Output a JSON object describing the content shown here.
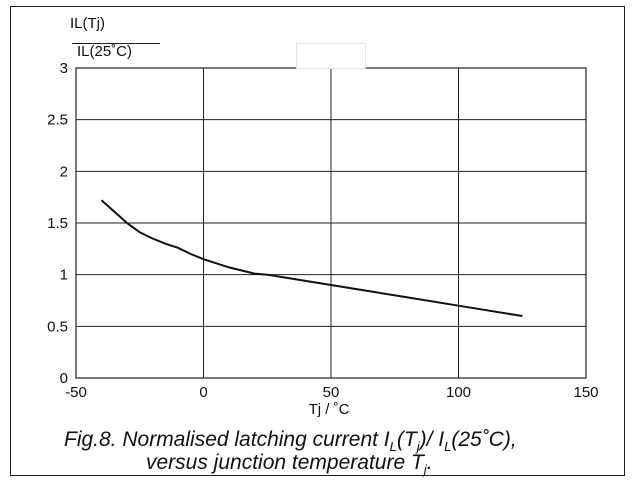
{
  "chart_data": {
    "type": "line",
    "ylabel_numerator": "IL(Tj)",
    "ylabel_denominator": "IL(25˚C)",
    "xlabel": "Tj / ˚C",
    "xlim": [
      -50,
      150
    ],
    "ylim": [
      0,
      3
    ],
    "x_ticks": [
      "-50",
      "0",
      "50",
      "100",
      "150"
    ],
    "y_ticks": [
      "0",
      "0.5",
      "1",
      "1.5",
      "2",
      "2.5",
      "3"
    ],
    "grid": true,
    "series": [
      {
        "x": [
          -40,
          -35,
          -30,
          -25,
          -20,
          -15,
          -10,
          -5,
          0,
          10,
          20,
          25,
          40,
          60,
          80,
          100,
          125
        ],
        "y": [
          1.72,
          1.61,
          1.5,
          1.41,
          1.35,
          1.3,
          1.26,
          1.2,
          1.15,
          1.07,
          1.01,
          1.0,
          0.94,
          0.86,
          0.78,
          0.7,
          0.6
        ]
      }
    ]
  },
  "caption": {
    "line1": "Fig.8.   Normalised latching current I",
    "line1_sub1": "L",
    "line1_mid": "(T",
    "line1_sub2": "j",
    "line1_end": ")/ I",
    "line1_sub3": "L",
    "line1_tail": "(25˚C),",
    "line2": "versus junction temperature T",
    "line2_sub": "j",
    "line2_end": "."
  }
}
